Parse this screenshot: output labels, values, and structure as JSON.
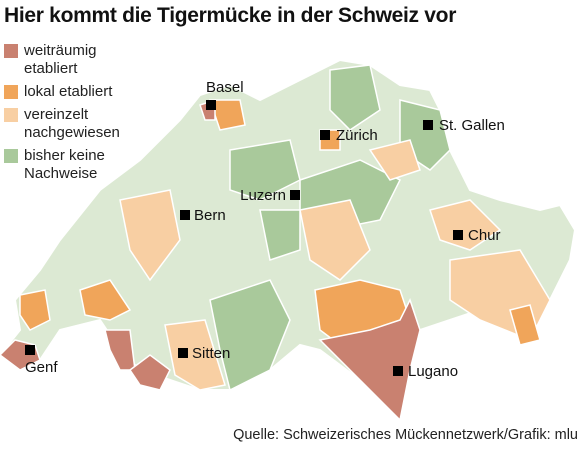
{
  "title": "Hier kommt die Tigermücke in der Schweiz vor",
  "legend": [
    {
      "label": "weiträumig etabliert",
      "color": "#c98170"
    },
    {
      "label": "lokal etabliert",
      "color": "#f0a55a"
    },
    {
      "label": "vereinzelt nachgewiesen",
      "color": "#f8cfa3"
    },
    {
      "label": "bisher keine Nachweise",
      "color": "#a9c99b"
    }
  ],
  "cities": [
    "Basel",
    "Zürich",
    "St. Gallen",
    "Luzern",
    "Bern",
    "Chur",
    "Genf",
    "Sitten",
    "Lugano"
  ],
  "source": "Quelle: Schweizerisches Mückennetzwerk/Grafik: mlu"
}
